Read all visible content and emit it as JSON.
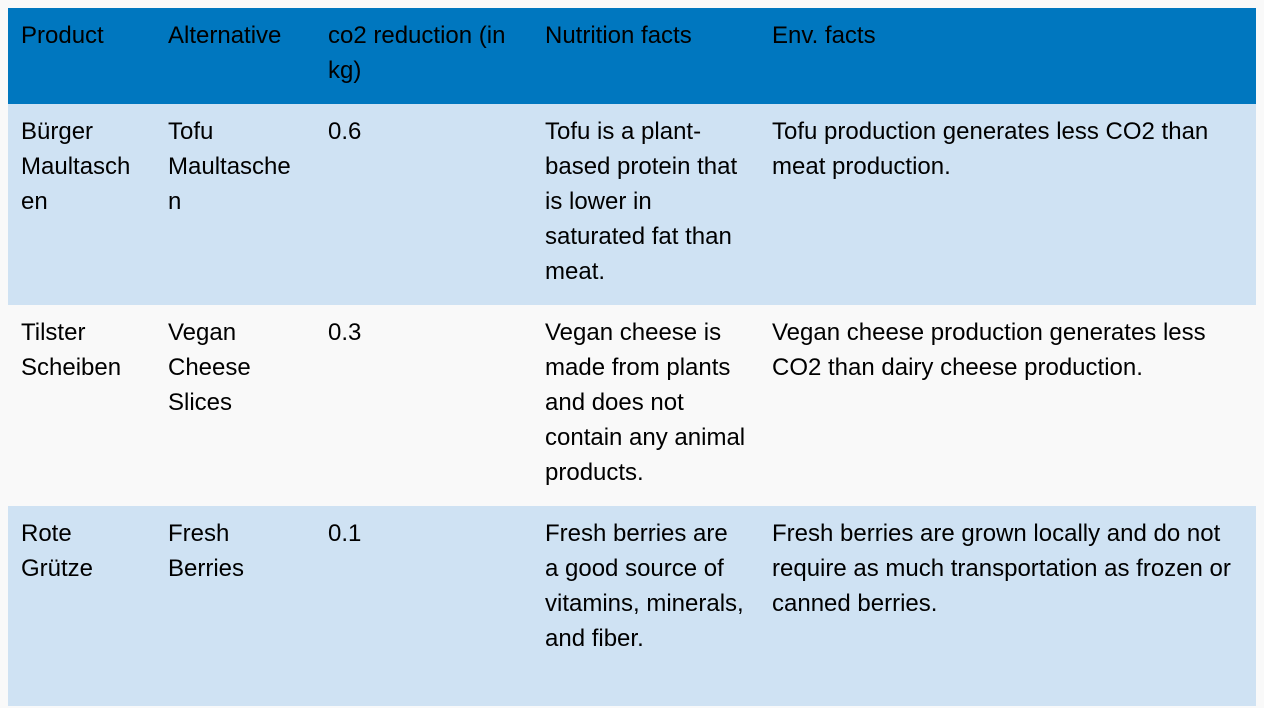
{
  "table": {
    "headers": [
      "Product",
      "Alternative",
      "co2 reduction (in kg)",
      "Nutrition facts",
      "Env. facts"
    ],
    "rows": [
      {
        "product": "Bürger Maultaschen",
        "alternative": "Tofu Maultaschen",
        "co2_reduction": "0.6",
        "nutrition": "Tofu is a plant-based protein that is lower in saturated fat than meat.",
        "env": "Tofu production generates less CO2 than meat production."
      },
      {
        "product": "Tilster Scheiben",
        "alternative": "Vegan Cheese Slices",
        "co2_reduction": "0.3",
        "nutrition": "Vegan cheese is made from plants and does not contain any animal products.",
        "env": "Vegan cheese production generates less CO2 than dairy cheese production."
      },
      {
        "product": "Rote Grütze",
        "alternative": "Fresh Berries",
        "co2_reduction": "0.1",
        "nutrition": "Fresh berries are a good source of vitamins, minerals, and fiber.",
        "env": "Fresh berries are grown locally and do not require as much transportation as frozen or canned berries."
      }
    ]
  },
  "colors": {
    "header_bg": "#0077bf",
    "row_alt_bg": "#cfe2f3",
    "page_bg": "#f9f9f9"
  }
}
